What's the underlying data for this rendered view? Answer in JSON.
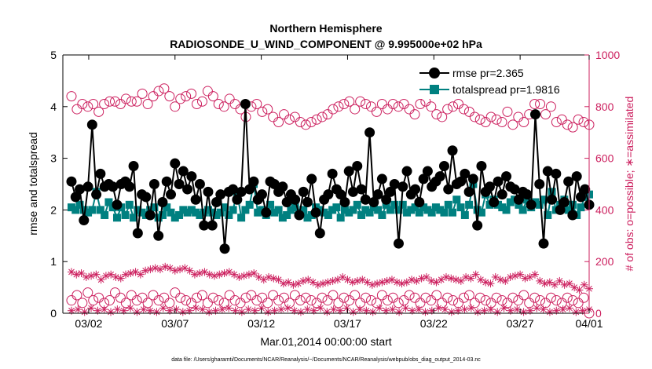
{
  "chart_data": {
    "type": "line",
    "title": "Northern Hemisphere",
    "subtitle": "RADIOSONDE_U_WIND_COMPONENT @ 9.995000e+02 hPa",
    "xlabel": "Mar.01,2014 00:00:00 start",
    "ylabel_left": "rmse and totalspread",
    "ylabel_right": "# of obs: o=possible; ∗=assimilated",
    "footer": "data file: /Users/gharamti/Documents/NCAR/Reanalysis/~/Documents/NCAR/Reanalysis/webpub/obs_diag_output_2014-03.nc",
    "xlim": [
      0.5,
      31.0
    ],
    "ylim_left": [
      0,
      5
    ],
    "ylim_right": [
      0,
      1000
    ],
    "x_ticks": [
      {
        "x": 2,
        "label": "03/02"
      },
      {
        "x": 7,
        "label": "03/07"
      },
      {
        "x": 12,
        "label": "03/12"
      },
      {
        "x": 17,
        "label": "03/17"
      },
      {
        "x": 22,
        "label": "03/22"
      },
      {
        "x": 27,
        "label": "03/27"
      },
      {
        "x": 31,
        "label": "04/01"
      }
    ],
    "y_ticks_left": [
      "0",
      "1",
      "2",
      "3",
      "4",
      "5"
    ],
    "y_ticks_right": [
      "0",
      "200",
      "400",
      "600",
      "800",
      "1000"
    ],
    "legend": {
      "position": "top-right",
      "entries": [
        "rmse pr=2.365",
        "totalspread pr=1.9816"
      ]
    },
    "colors": {
      "rmse": "#000000",
      "totalspread": "#008080",
      "obs": "#cc1f5e"
    },
    "series": [
      {
        "name": "rmse",
        "axis": "left",
        "values": [
          2.55,
          2.25,
          2.4,
          1.8,
          2.45,
          3.65,
          2.3,
          2.7,
          2.45,
          2.5,
          2.45,
          2.1,
          2.5,
          2.55,
          2.45,
          2.85,
          1.55,
          2.3,
          2.25,
          1.9,
          2.5,
          1.5,
          2.15,
          2.55,
          2.3,
          2.9,
          2.5,
          2.75,
          2.4,
          2.65,
          2.2,
          2.5,
          1.7,
          2.35,
          1.7,
          2.15,
          2.3,
          1.25,
          2.35,
          2.4,
          2.2,
          2.35,
          4.05,
          2.4,
          2.55,
          2.2,
          2.3,
          1.95,
          2.55,
          2.5,
          2.35,
          2.45,
          2.15,
          2.3,
          2.2,
          1.9,
          2.35,
          2.15,
          2.6,
          1.95,
          1.55,
          2.2,
          2.3,
          2.7,
          2.4,
          2.3,
          2.15,
          2.75,
          2.35,
          2.85,
          2.4,
          2.2,
          3.5,
          2.15,
          2.3,
          2.6,
          2.2,
          2.35,
          2.5,
          1.35,
          2.45,
          2.75,
          2.3,
          2.4,
          2.15,
          2.6,
          2.75,
          2.45,
          2.55,
          2.65,
          2.85,
          2.4,
          3.15,
          2.5,
          2.55,
          2.7,
          2.35,
          2.6,
          1.7,
          2.85,
          2.35,
          2.45,
          2.15,
          2.55,
          2.3,
          2.65,
          2.45,
          2.4,
          2.2,
          2.35,
          2.3,
          2.1,
          3.85,
          2.5,
          1.35,
          2.75,
          2.2,
          2.7,
          2.0,
          2.15,
          2.55,
          1.9,
          2.65,
          2.25,
          2.4,
          2.1
        ]
      },
      {
        "name": "totalspread",
        "axis": "left",
        "values": [
          2.05,
          2.0,
          2.1,
          2.0,
          1.95,
          2.0,
          2.35,
          2.0,
          1.9,
          2.15,
          2.05,
          1.85,
          2.05,
          1.9,
          2.1,
          1.85,
          2.0,
          1.95,
          1.9,
          2.0,
          2.05,
          1.85,
          1.9,
          2.05,
          1.95,
          1.85,
          1.9,
          2.0,
          1.95,
          2.0,
          1.95,
          1.9,
          1.95,
          2.0,
          1.95,
          1.9,
          1.95,
          2.05,
          1.9,
          2.0,
          2.35,
          1.85,
          2.0,
          2.1,
          2.5,
          1.95,
          2.0,
          1.9,
          2.1,
          1.95,
          2.0,
          1.85,
          1.9,
          2.0,
          2.05,
          1.95,
          2.0,
          1.85,
          1.9,
          2.05,
          2.0,
          1.95,
          1.9,
          2.0,
          2.05,
          1.85,
          2.0,
          1.95,
          2.0,
          2.1,
          1.9,
          2.0,
          1.95,
          2.05,
          2.0,
          1.9,
          2.1,
          2.0,
          2.1,
          2.0,
          2.1,
          1.95,
          2.0,
          2.05,
          1.95,
          2.05,
          2.0,
          1.95,
          2.05,
          2.0,
          1.95,
          2.1,
          1.95,
          2.2,
          2.05,
          1.9,
          2.1,
          2.5,
          2.0,
          1.95,
          2.3,
          2.1,
          2.2,
          2.1,
          2.05,
          2.0,
          2.15,
          2.2,
          2.1,
          2.0,
          2.2,
          2.05,
          2.15,
          2.1,
          2.2,
          1.9,
          2.35,
          2.0,
          2.1,
          2.2,
          2.0,
          2.1,
          1.9,
          2.05,
          2.25,
          2.3
        ]
      },
      {
        "name": "obs_possible_high",
        "axis": "right",
        "values": [
          840,
          790,
          810,
          800,
          810,
          780,
          810,
          820,
          820,
          810,
          830,
          820,
          820,
          850,
          810,
          840,
          860,
          870,
          840,
          800,
          830,
          840,
          850,
          810,
          820,
          860,
          840,
          810,
          800,
          830,
          810,
          790,
          760,
          800,
          810,
          780,
          790,
          760,
          740,
          770,
          750,
          760,
          740,
          730,
          740,
          750,
          760,
          770,
          790,
          800,
          810,
          820,
          790,
          820,
          810,
          800,
          780,
          810,
          790,
          810,
          800,
          810,
          790,
          770,
          810,
          820,
          800,
          770,
          760,
          790,
          800,
          810,
          790,
          780,
          760,
          750,
          740,
          760,
          750,
          740,
          780,
          730,
          760,
          740,
          770,
          810,
          810,
          770,
          800,
          740,
          750,
          730,
          720,
          750,
          740,
          730
        ]
      },
      {
        "name": "obs_possible_low",
        "axis": "right",
        "values": [
          50,
          70,
          40,
          80,
          50,
          60,
          40,
          50,
          80,
          60,
          40,
          70,
          50,
          60,
          40,
          70,
          50,
          60,
          40,
          80,
          60,
          50,
          40,
          60,
          70,
          40,
          60,
          50,
          40,
          70,
          50,
          40,
          60,
          70,
          50,
          60,
          40,
          70,
          50,
          60,
          40,
          70,
          50,
          60,
          50,
          40,
          60,
          50,
          70,
          40,
          60,
          50,
          70,
          40,
          60,
          50,
          40,
          70,
          50,
          60,
          40,
          50,
          70,
          60,
          40,
          60,
          50,
          70,
          40,
          60,
          50,
          40,
          60,
          70,
          40,
          60,
          50,
          40,
          60,
          50,
          40,
          60,
          50,
          70,
          40,
          60,
          50,
          40,
          60,
          50,
          40,
          60,
          50,
          40,
          60,
          0
        ]
      },
      {
        "name": "obs_assimilated_high",
        "axis": "right",
        "values": [
          160,
          150,
          155,
          140,
          145,
          150,
          130,
          145,
          150,
          140,
          135,
          150,
          155,
          160,
          150,
          165,
          170,
          175,
          170,
          180,
          175,
          165,
          170,
          175,
          165,
          150,
          155,
          160,
          150,
          145,
          150,
          155,
          160,
          150,
          140,
          145,
          150,
          155,
          140,
          130,
          140,
          135,
          130,
          115,
          120,
          110,
          115,
          125,
          130,
          120,
          110,
          115,
          120,
          125,
          130,
          140,
          130,
          120,
          125,
          130,
          120,
          110,
          115,
          120,
          125,
          130,
          120,
          115,
          120,
          130,
          125,
          135,
          140,
          125,
          120,
          130,
          140,
          135,
          130,
          125,
          140,
          135,
          150,
          130,
          120,
          115,
          140,
          130,
          125,
          140,
          145,
          150,
          135,
          140,
          150,
          125,
          115,
          120,
          110,
          125,
          110,
          115,
          100,
          90,
          110,
          95
        ]
      },
      {
        "name": "obs_assimilated_low",
        "axis": "right",
        "values": [
          10,
          15,
          5,
          20,
          10,
          15,
          5,
          15,
          10,
          20,
          5,
          15,
          10,
          5,
          20,
          10,
          15,
          5,
          10,
          20,
          15,
          5,
          10,
          15,
          20,
          10,
          5,
          15,
          10,
          20,
          5,
          10,
          15,
          20,
          10,
          5,
          15,
          10,
          20,
          5,
          15,
          10,
          20,
          5,
          15,
          10,
          5,
          20,
          10,
          15,
          5,
          20,
          10,
          15,
          5,
          10,
          20,
          15,
          5,
          10,
          15,
          20,
          5,
          10,
          15,
          5,
          20,
          10,
          15,
          5,
          10,
          20,
          15,
          5,
          10,
          15,
          20,
          5,
          10,
          15
        ]
      }
    ]
  }
}
